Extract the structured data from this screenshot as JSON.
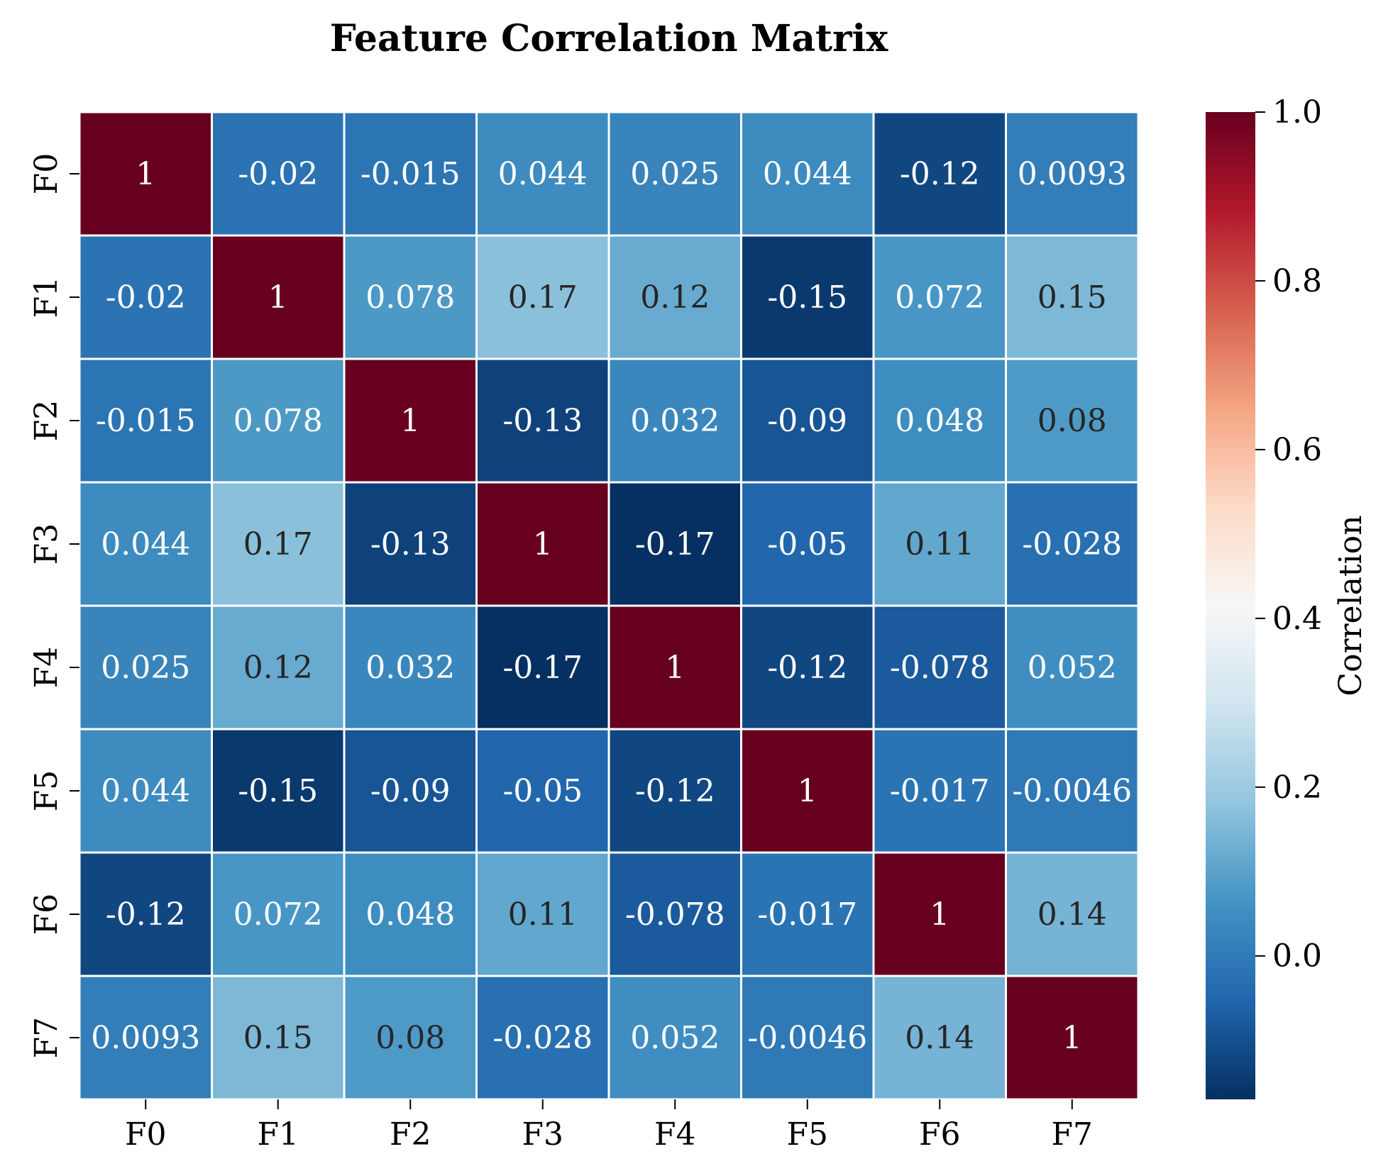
{
  "chart_data": {
    "type": "heatmap",
    "title": "Feature Correlation Matrix",
    "x_categories": [
      "F0",
      "F1",
      "F2",
      "F3",
      "F4",
      "F5",
      "F6",
      "F7"
    ],
    "y_categories": [
      "F0",
      "F1",
      "F2",
      "F3",
      "F4",
      "F5",
      "F6",
      "F7"
    ],
    "values": [
      [
        1,
        -0.02,
        -0.015,
        0.044,
        0.025,
        0.044,
        -0.12,
        0.0093
      ],
      [
        -0.02,
        1,
        0.078,
        0.17,
        0.12,
        -0.15,
        0.072,
        0.15
      ],
      [
        -0.015,
        0.078,
        1,
        -0.13,
        0.032,
        -0.09,
        0.048,
        0.08
      ],
      [
        0.044,
        0.17,
        -0.13,
        1,
        -0.17,
        -0.05,
        0.11,
        -0.028
      ],
      [
        0.025,
        0.12,
        0.032,
        -0.17,
        1,
        -0.12,
        -0.078,
        0.052
      ],
      [
        0.044,
        -0.15,
        -0.09,
        -0.05,
        -0.12,
        1,
        -0.017,
        -0.0046
      ],
      [
        -0.12,
        0.072,
        0.048,
        0.11,
        -0.078,
        -0.017,
        1,
        0.14
      ],
      [
        0.0093,
        0.15,
        0.08,
        -0.028,
        0.052,
        -0.0046,
        0.14,
        1
      ]
    ],
    "colormap": "RdBu_r",
    "color_range": [
      -0.17,
      1.0
    ],
    "colorbar": {
      "label": "Correlation",
      "ticks": [
        0.0,
        0.2,
        0.4,
        0.6,
        0.8,
        1.0
      ],
      "tick_labels": [
        "0.0",
        "0.2",
        "0.4",
        "0.6",
        "0.8",
        "1.0"
      ]
    },
    "grid_line_color": "#ffffff"
  }
}
